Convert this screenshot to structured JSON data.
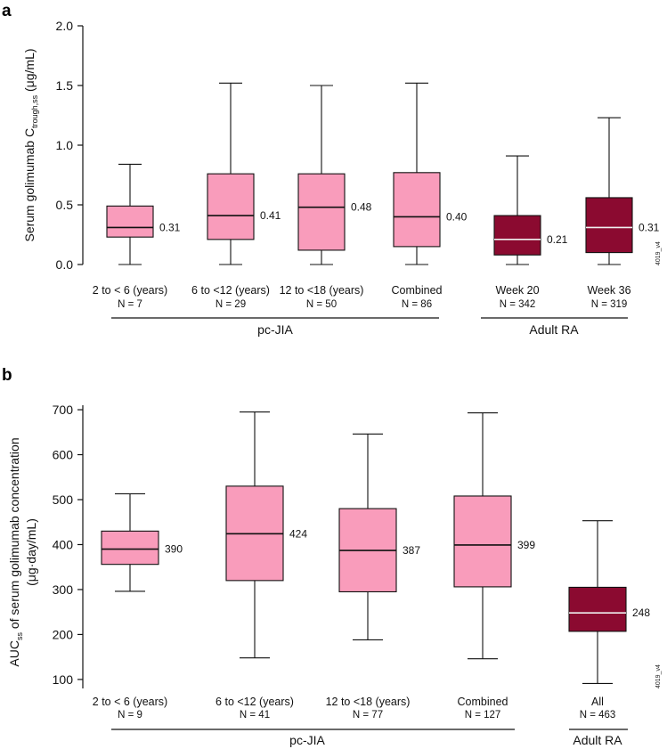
{
  "chart_data": [
    {
      "panel": "a",
      "type": "box",
      "ylabel_main": "Serum golimumab C",
      "ylabel_sub": "trough,ss",
      "ylabel_units": " (μg/mL)",
      "ylim": [
        0,
        2.0
      ],
      "yticks": [
        0,
        0.5,
        1.0,
        1.5,
        2.0
      ],
      "ytick_labels": [
        "0.0",
        "0.5",
        "1.0",
        "1.5",
        "2.0"
      ],
      "code": "4019_v4",
      "boxes": [
        {
          "label": "2 to < 6 (years)",
          "n": "N = 7",
          "min": 0.0,
          "q1": 0.23,
          "median": 0.31,
          "q3": 0.49,
          "max": 0.84,
          "median_label": "0.31",
          "color": "#f99cbb",
          "median_color": "#111111",
          "group": "pc-JIA"
        },
        {
          "label": "6 to <12 (years)",
          "n": "N = 29",
          "min": 0.0,
          "q1": 0.21,
          "median": 0.41,
          "q3": 0.76,
          "max": 1.52,
          "median_label": "0.41",
          "color": "#f99cbb",
          "median_color": "#111111",
          "group": "pc-JIA"
        },
        {
          "label": "12 to <18 (years)",
          "n": "N = 50",
          "min": 0.0,
          "q1": 0.12,
          "median": 0.48,
          "q3": 0.76,
          "max": 1.5,
          "median_label": "0.48",
          "color": "#f99cbb",
          "median_color": "#111111",
          "group": "pc-JIA"
        },
        {
          "label": "Combined",
          "n": "N = 86",
          "min": 0.0,
          "q1": 0.15,
          "median": 0.4,
          "q3": 0.77,
          "max": 1.52,
          "median_label": "0.40",
          "color": "#f99cbb",
          "median_color": "#111111",
          "group": "pc-JIA"
        },
        {
          "label": "Week 20",
          "n": "N = 342",
          "min": 0.0,
          "q1": 0.08,
          "median": 0.21,
          "q3": 0.41,
          "max": 0.91,
          "median_label": "0.21",
          "color": "#8b0a30",
          "median_color": "#f0f0f0",
          "group": "Adult RA"
        },
        {
          "label": "Week 36",
          "n": "N = 319",
          "min": 0.0,
          "q1": 0.1,
          "median": 0.31,
          "q3": 0.56,
          "max": 1.23,
          "median_label": "0.31",
          "color": "#8b0a30",
          "median_color": "#f0f0f0",
          "group": "Adult RA"
        }
      ],
      "groups": [
        "pc-JIA",
        "Adult RA"
      ]
    },
    {
      "panel": "b",
      "type": "box",
      "ylabel_main": "AUC",
      "ylabel_sub": "ss",
      "ylabel_rest": " of serum golimumab concentration",
      "ylabel_units": "(μg·day/mL)",
      "ylim": [
        80,
        710
      ],
      "yticks": [
        100,
        200,
        300,
        400,
        500,
        600,
        700
      ],
      "ytick_labels": [
        "100",
        "200",
        "300",
        "400",
        "500",
        "600",
        "700"
      ],
      "code": "4019_v4",
      "boxes": [
        {
          "label": "2 to < 6 (years)",
          "n": "N = 9",
          "min": 296,
          "q1": 356,
          "median": 390,
          "q3": 430,
          "max": 513,
          "median_label": "390",
          "color": "#f99cbb",
          "median_color": "#111111",
          "group": "pc-JIA"
        },
        {
          "label": "6 to <12 (years)",
          "n": "N = 41",
          "min": 148,
          "q1": 320,
          "median": 424,
          "q3": 530,
          "max": 695,
          "median_label": "424",
          "color": "#f99cbb",
          "median_color": "#111111",
          "group": "pc-JIA"
        },
        {
          "label": "12 to <18 (years)",
          "n": "N = 77",
          "min": 188,
          "q1": 295,
          "median": 387,
          "q3": 480,
          "max": 646,
          "median_label": "387",
          "color": "#f99cbb",
          "median_color": "#111111",
          "group": "pc-JIA"
        },
        {
          "label": "Combined",
          "n": "N = 127",
          "min": 146,
          "q1": 306,
          "median": 399,
          "q3": 508,
          "max": 693,
          "median_label": "399",
          "color": "#f99cbb",
          "median_color": "#111111",
          "group": "pc-JIA"
        },
        {
          "label": "All",
          "n": "N = 463",
          "min": 91,
          "q1": 207,
          "median": 248,
          "q3": 305,
          "max": 453,
          "median_label": "248",
          "color": "#8b0a30",
          "median_color": "#f0f0f0",
          "group": "Adult RA"
        }
      ],
      "groups": [
        "pc-JIA",
        "Adult RA"
      ]
    }
  ]
}
